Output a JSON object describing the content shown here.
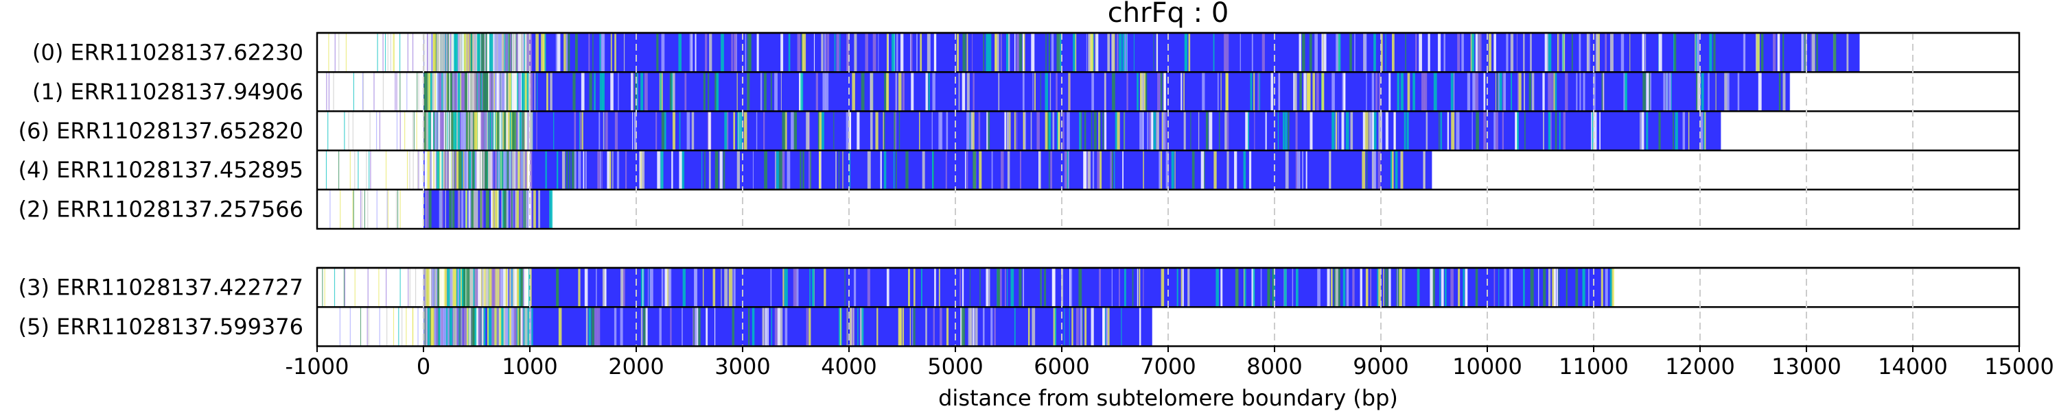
{
  "chart_data": {
    "type": "bar",
    "title": "chrFq : 0",
    "xlabel": "distance from subtelomere boundary (bp)",
    "ylabel": "",
    "xlim": [
      -1000,
      15000
    ],
    "xticks": [
      -1000,
      0,
      1000,
      2000,
      3000,
      4000,
      5000,
      6000,
      7000,
      8000,
      9000,
      10000,
      11000,
      12000,
      13000,
      14000,
      15000
    ],
    "grid": "vertical dashed",
    "colors": {
      "repeat_fill": "#3333ff",
      "grid": "#cccccc",
      "frame": "#000000",
      "variant_colors": [
        "#ffffff",
        "#2e8b57",
        "#00bfbf",
        "#e6e65a",
        "#a0a0ff",
        "#c8c8c8",
        "#9370db"
      ]
    },
    "groups": [
      {
        "reads": [
          {
            "label": "(0) ERR11028137.62230",
            "end": 13500
          },
          {
            "label": "(1) ERR11028137.94906",
            "end": 12850
          },
          {
            "label": "(6) ERR11028137.652820",
            "end": 12200
          },
          {
            "label": "(4) ERR11028137.452895",
            "end": 9480
          },
          {
            "label": "(2) ERR11028137.257566",
            "end": 1200
          }
        ]
      },
      {
        "reads": [
          {
            "label": "(3) ERR11028137.422727",
            "end": 11180
          },
          {
            "label": "(5) ERR11028137.599376",
            "end": 6850
          }
        ]
      }
    ]
  }
}
